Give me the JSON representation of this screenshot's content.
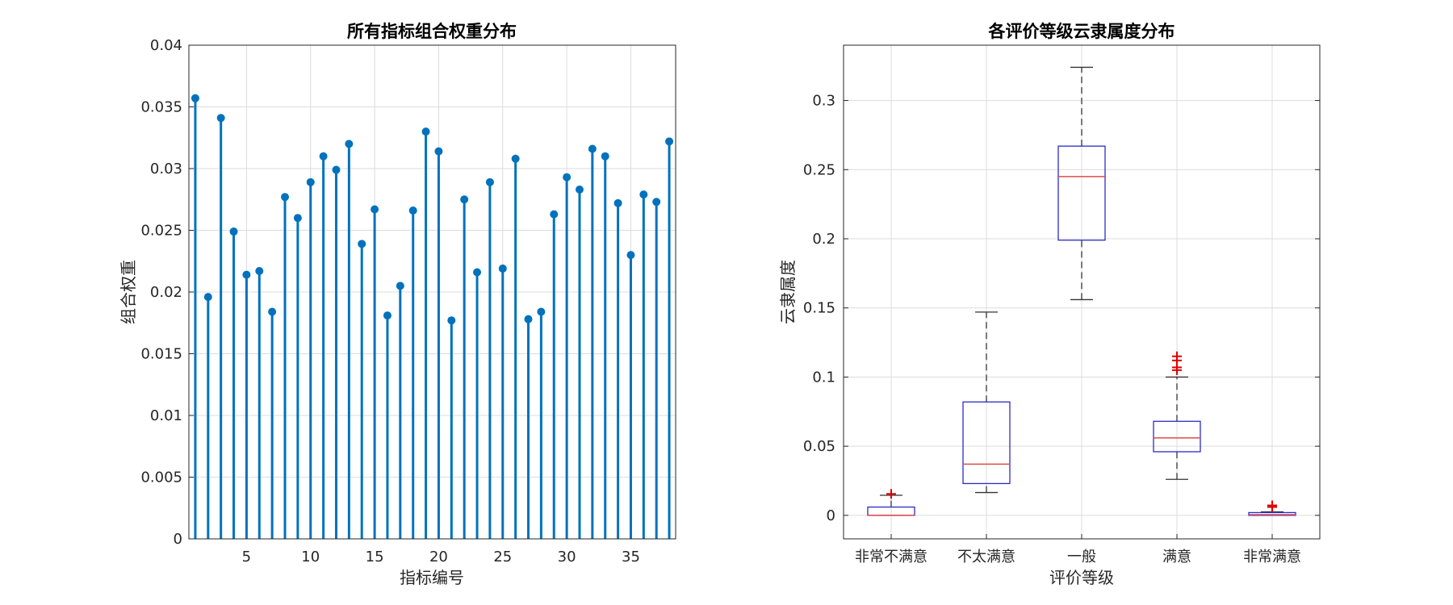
{
  "chart_data": [
    {
      "type": "stem",
      "title": "所有指标组合权重分布",
      "xlabel": "指标编号",
      "ylabel": "组合权重",
      "xlim": [
        0.5,
        38.5
      ],
      "ylim": [
        0,
        0.04
      ],
      "xticks": [
        5,
        10,
        15,
        20,
        25,
        30,
        35
      ],
      "yticks": [
        0,
        0.005,
        0.01,
        0.015,
        0.02,
        0.025,
        0.03,
        0.035,
        0.04
      ],
      "ytick_labels": [
        "0",
        "0.005",
        "0.01",
        "0.015",
        "0.02",
        "0.025",
        "0.03",
        "0.035",
        "0.04"
      ],
      "grid": true,
      "color": "#0072bd",
      "x": [
        1,
        2,
        3,
        4,
        5,
        6,
        7,
        8,
        9,
        10,
        11,
        12,
        13,
        14,
        15,
        16,
        17,
        18,
        19,
        20,
        21,
        22,
        23,
        24,
        25,
        26,
        27,
        28,
        29,
        30,
        31,
        32,
        33,
        34,
        35,
        36,
        37,
        38
      ],
      "values": [
        0.0357,
        0.0196,
        0.0341,
        0.0249,
        0.0214,
        0.0217,
        0.0184,
        0.0277,
        0.026,
        0.0289,
        0.031,
        0.0299,
        0.032,
        0.0239,
        0.0267,
        0.0181,
        0.0205,
        0.0266,
        0.033,
        0.0314,
        0.0177,
        0.0275,
        0.0216,
        0.0289,
        0.0219,
        0.0308,
        0.0178,
        0.0184,
        0.0263,
        0.0293,
        0.0283,
        0.0316,
        0.031,
        0.0272,
        0.023,
        0.0279,
        0.0273,
        0.0322
      ]
    },
    {
      "type": "box",
      "title": "各评价等级云隶属度分布",
      "xlabel": "评价等级",
      "ylabel": "云隶属度",
      "ylim": [
        -0.017,
        0.34
      ],
      "yticks": [
        0,
        0.05,
        0.1,
        0.15,
        0.2,
        0.25,
        0.3
      ],
      "ytick_labels": [
        "0",
        "0.05",
        "0.1",
        "0.15",
        "0.2",
        "0.25",
        "0.3"
      ],
      "grid": true,
      "box_color": "#2b2bc8",
      "median_color": "#e34a4a",
      "outlier_color": "#e00000",
      "categories": [
        "非常不满意",
        "不太满意",
        "一般",
        "满意",
        "非常满意"
      ],
      "boxes": [
        {
          "whisker_low": 0.0,
          "q1": 0.0,
          "median": 0.0,
          "q3": 0.006,
          "whisker_high": 0.0145,
          "outliers": [
            0.0155
          ]
        },
        {
          "whisker_low": 0.0165,
          "q1": 0.023,
          "median": 0.037,
          "q3": 0.082,
          "whisker_high": 0.147,
          "outliers": []
        },
        {
          "whisker_low": 0.156,
          "q1": 0.199,
          "median": 0.245,
          "q3": 0.267,
          "whisker_high": 0.324,
          "outliers": []
        },
        {
          "whisker_low": 0.026,
          "q1": 0.046,
          "median": 0.056,
          "q3": 0.068,
          "whisker_high": 0.1,
          "outliers": [
            0.105,
            0.107,
            0.112,
            0.115
          ]
        },
        {
          "whisker_low": 0.0,
          "q1": 0.0,
          "median": 0.0005,
          "q3": 0.002,
          "whisker_high": 0.0025,
          "outliers": [
            0.006,
            0.0068,
            0.0072
          ]
        }
      ]
    }
  ]
}
